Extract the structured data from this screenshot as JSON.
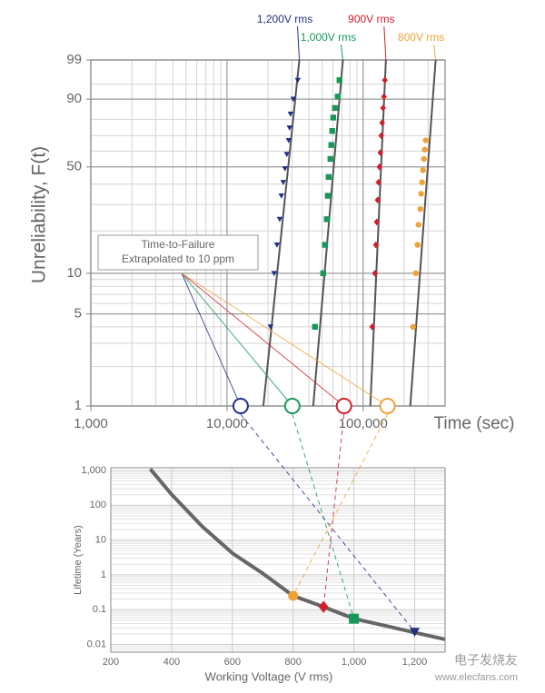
{
  "chart_data": [
    {
      "type": "scatter",
      "xscale": "log",
      "yscale": "weibull",
      "xlabel": "Time (sec)",
      "ylabel": "Unreliability, F(t)",
      "xlim": [
        1000,
        400000
      ],
      "xticks": [
        {
          "value": 1000,
          "label": "1,000"
        },
        {
          "value": 10000,
          "label": "10,000"
        },
        {
          "value": 100000,
          "label": "100,000"
        }
      ],
      "ylim": [
        1,
        99
      ],
      "yticks": [
        1,
        5,
        10,
        50,
        90,
        99
      ],
      "yminor": [
        2,
        3,
        4,
        6,
        7,
        8,
        9,
        20,
        30,
        40,
        60,
        70,
        80,
        95
      ],
      "grid": true,
      "annotation": [
        "Time-to-Failure",
        "Extrapolated to 10 ppm"
      ],
      "series": [
        {
          "name": "1,200V rms",
          "color": "#232f86",
          "marker": "triangle",
          "x": [
            20900,
            22200,
            23300,
            24400,
            25100,
            25900,
            26700,
            27500,
            28400,
            28800,
            29300,
            30700,
            33100
          ],
          "values": [
            4,
            10,
            16,
            24,
            34,
            41,
            49,
            58,
            67,
            75,
            83,
            90,
            96
          ],
          "fit_x": [
            18500,
            34000
          ],
          "fit_y": [
            1,
            99
          ],
          "extrapolated": {
            "x": 12600,
            "y": 1
          }
        },
        {
          "name": "1,000V rms",
          "color": "#17985a",
          "marker": "square",
          "x": [
            44300,
            50900,
            52500,
            54100,
            55000,
            55800,
            57500,
            58400,
            59300,
            60300,
            62100,
            65100,
            67100
          ],
          "values": [
            4,
            10,
            16,
            24,
            34,
            44,
            55,
            64,
            73,
            81,
            86,
            91,
            96
          ],
          "fit_x": [
            43000,
            71000
          ],
          "fit_y": [
            1,
            99
          ],
          "extrapolated": {
            "x": 30200,
            "y": 1
          }
        },
        {
          "name": "900V rms",
          "color": "#d0202c",
          "marker": "diamond",
          "x": [
            116600,
            122100,
            124000,
            125900,
            127900,
            129800,
            131800,
            133900,
            135900,
            138000,
            140200,
            142300,
            144500
          ],
          "values": [
            4,
            10,
            16,
            23,
            32,
            41,
            50,
            59,
            70,
            78,
            86,
            91,
            96
          ],
          "fit_x": [
            113000,
            147000
          ],
          "fit_y": [
            1,
            99
          ],
          "extrapolated": {
            "x": 72400,
            "y": 1
          }
        },
        {
          "name": "800V rms",
          "color": "#eea237",
          "marker": "circle",
          "x": [
            232600,
            243600,
            251200,
            255100,
            263000,
            267000,
            271200,
            275400,
            279600,
            283900,
            288400
          ],
          "values": [
            4,
            10,
            16,
            22,
            28,
            35,
            41,
            48,
            55,
            61,
            67
          ],
          "fit_x": [
            222000,
            341000
          ],
          "fit_y": [
            1,
            99
          ],
          "extrapolated": {
            "x": 151000,
            "y": 1
          }
        }
      ]
    },
    {
      "type": "line",
      "yscale": "log",
      "xlabel": "Working Voltage (V rms)",
      "ylabel": "Lifetime (Years)",
      "xlim": [
        200,
        1300
      ],
      "xticks": [
        200,
        400,
        600,
        800,
        {
          "value": 1000,
          "label": "1,000"
        },
        {
          "value": 1200,
          "label": "1,200"
        }
      ],
      "ylim": [
        0.006,
        1200
      ],
      "yticks": [
        0.01,
        0.1,
        1,
        10,
        100,
        {
          "value": 1000,
          "label": "1,000"
        }
      ],
      "grid": true,
      "curve": {
        "color": "#666666",
        "x": [
          330,
          400,
          500,
          600,
          700,
          800,
          900,
          1000,
          1100,
          1200,
          1300
        ],
        "values": [
          1100,
          205,
          25,
          4.2,
          1.1,
          0.25,
          0.12,
          0.055,
          0.035,
          0.022,
          0.014
        ]
      },
      "points": [
        {
          "color": "#232f86",
          "marker": "triangle",
          "x": 1200,
          "value": 0.023
        },
        {
          "color": "#17985a",
          "marker": "square",
          "x": 1000,
          "value": 0.055
        },
        {
          "color": "#d0202c",
          "marker": "diamond",
          "x": 900,
          "value": 0.12
        },
        {
          "color": "#eea237",
          "marker": "circle",
          "x": 800,
          "value": 0.25
        }
      ]
    }
  ],
  "watermark": [
    "电子发烧友",
    "www.elecfans.com"
  ]
}
